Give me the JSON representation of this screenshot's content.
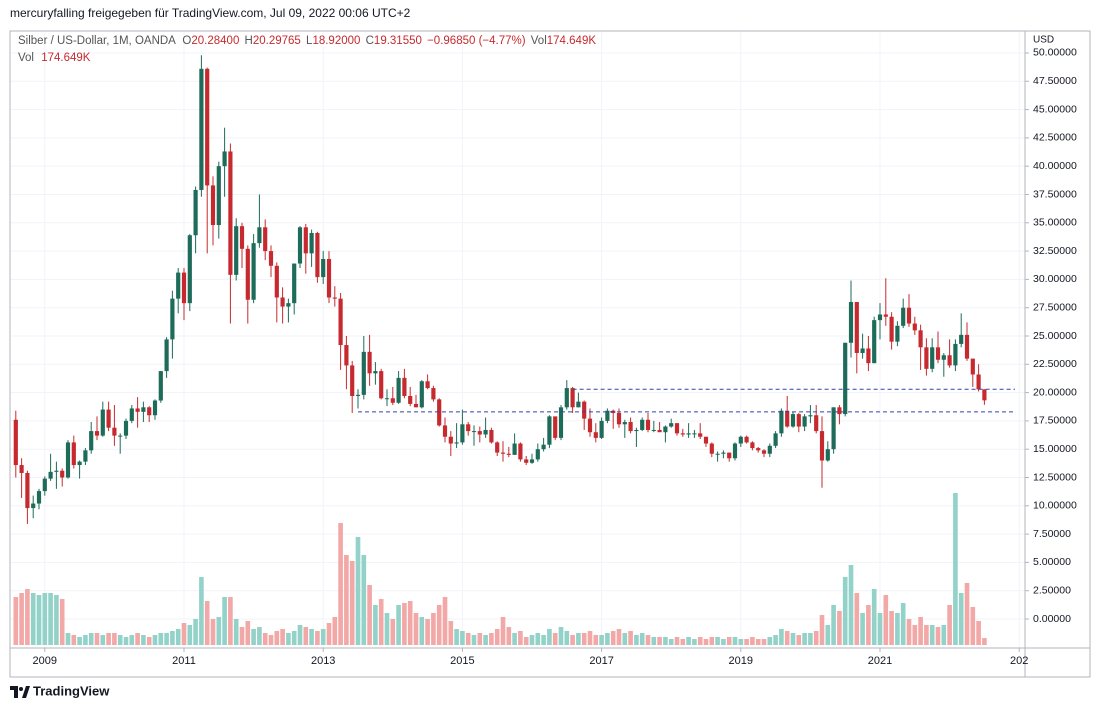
{
  "header": {
    "shared_by": "mercuryfalling freigegeben für TradingView.com, Jul 09, 2022 00:06 UTC+2"
  },
  "footer": {
    "brand": "TradingView"
  },
  "chart_data": {
    "type": "candlestick",
    "title": "Silber / US-Dollar, 1M, OANDA",
    "legend": {
      "o_label": "O",
      "o": "20.28400",
      "h_label": "H",
      "h": "20.29765",
      "l_label": "L",
      "l": "18.92000",
      "c_label": "C",
      "c": "19.31550",
      "change": "−0.96850 (−4.77%)",
      "vol_label": "Vol",
      "vol": "174.649K"
    },
    "currency": "USD",
    "up_color": "#1d6b59",
    "down_color": "#c62a2f",
    "volume_up_color": "#93d2c9",
    "volume_down_color": "#f3a8a8",
    "categories": [
      null,
      null,
      null,
      null,
      null,
      null,
      null,
      null,
      null,
      null,
      null,
      null,
      null,
      null,
      null,
      null,
      null,
      null,
      null,
      null,
      null,
      null,
      null,
      null,
      null,
      null,
      null,
      null,
      null,
      null,
      null,
      null,
      null,
      null,
      null,
      null,
      null,
      null,
      null,
      null,
      null,
      null,
      null,
      null,
      null,
      null,
      null,
      null,
      null,
      null,
      null,
      null,
      null,
      null,
      null,
      null,
      null,
      null,
      null,
      null,
      null,
      null,
      null,
      null,
      null,
      null,
      null,
      null,
      null,
      null,
      null,
      null,
      null,
      null,
      null,
      null,
      null,
      null,
      null,
      null,
      null,
      null,
      null,
      null,
      null,
      null,
      null,
      null,
      null,
      null,
      null,
      null,
      null,
      null,
      null,
      null,
      null,
      null,
      null,
      null,
      null,
      null,
      null,
      null,
      null,
      null,
      null,
      null,
      null,
      null,
      null,
      null,
      null,
      null,
      null,
      null,
      null,
      null,
      null,
      null,
      null,
      null,
      null,
      null,
      null,
      null,
      null,
      null,
      null,
      null,
      null,
      null,
      null,
      null,
      null,
      null,
      null,
      null,
      null,
      null,
      null,
      null,
      null,
      null,
      null,
      null,
      null,
      null,
      null,
      null,
      null,
      null,
      null,
      null,
      null,
      null,
      null,
      null,
      null,
      null,
      null,
      null,
      null,
      null,
      null,
      null,
      null,
      null
    ],
    "open": [
      17.6,
      13.6,
      12.9,
      9.8,
      10.2,
      11.3,
      12.4,
      13.0,
      13.1,
      12.5,
      15.6,
      13.6,
      13.9,
      14.9,
      16.6,
      16.2,
      18.5,
      16.9,
      16.2,
      16.2,
      17.5,
      18.6,
      18.3,
      18.7,
      18.0,
      19.3,
      21.9,
      24.7,
      28.3,
      30.6,
      27.9,
      33.9,
      37.9,
      48.6,
      38.3,
      34.8,
      40.0,
      41.3,
      30.4,
      34.7,
      32.7,
      28.2,
      33.2,
      34.6,
      32.5,
      31.2,
      28.4,
      27.6,
      27.9,
      31.4,
      34.6,
      32.3,
      34.1,
      30.2,
      31.8,
      28.4,
      28.3,
      24.2,
      22.4,
      19.7,
      19.8,
      23.6,
      21.7,
      21.9,
      19.5,
      19.5,
      19.1,
      21.3,
      19.7,
      19.0,
      18.7,
      21.0,
      20.4,
      19.4,
      17.1,
      16.1,
      15.5,
      15.6,
      17.2,
      16.6,
      16.6,
      16.3,
      16.7,
      15.6,
      14.7,
      14.6,
      14.5,
      15.5,
      14.1,
      13.8,
      14.1,
      15.0,
      15.4,
      17.9,
      16.0,
      18.7,
      20.4,
      18.7,
      19.2,
      17.7,
      16.5,
      16.0,
      17.5,
      18.4,
      18.2,
      17.2,
      17.4,
      16.6,
      16.7,
      17.6,
      16.7,
      16.7,
      16.5,
      17.0,
      17.3,
      16.4,
      16.3,
      16.4,
      16.4,
      16.1,
      15.5,
      14.6,
      14.6,
      14.7,
      14.2,
      15.5,
      16.1,
      15.6,
      15.1,
      14.9,
      14.6,
      15.3,
      16.4,
      18.4,
      17.0,
      18.1,
      17.0,
      17.9,
      18.0,
      16.6,
      14.0,
      15.0,
      18.7,
      18.1,
      24.4,
      28.0,
      23.5,
      23.9,
      22.6,
      26.4,
      26.9,
      26.7,
      24.5,
      25.9,
      27.5,
      26.1,
      25.5,
      24.0,
      22.1,
      24.0,
      22.9,
      23.3,
      22.4,
      24.3,
      25.1,
      23.0,
      21.6,
      20.284
    ],
    "high": [
      18.4,
      14.2,
      13.1,
      10.9,
      11.5,
      12.6,
      14.6,
      13.9,
      13.3,
      15.8,
      16.2,
      14.0,
      15.1,
      17.4,
      17.9,
      19.2,
      19.2,
      18.9,
      16.4,
      17.7,
      18.9,
      19.6,
      19.2,
      18.8,
      19.4,
      21.9,
      24.9,
      29.0,
      31.0,
      31.0,
      34.0,
      38.2,
      49.8,
      48.7,
      39.1,
      40.4,
      43.4,
      42.0,
      35.4,
      35.0,
      33.0,
      34.0,
      37.5,
      35.3,
      33.0,
      31.5,
      29.3,
      28.3,
      31.4,
      34.7,
      34.9,
      34.4,
      34.2,
      32.5,
      32.5,
      29.4,
      28.8,
      25.0,
      22.8,
      20.3,
      25.0,
      25.1,
      22.7,
      22.1,
      20.3,
      20.5,
      21.9,
      22.1,
      20.5,
      19.8,
      21.1,
      21.6,
      20.6,
      19.5,
      17.8,
      16.6,
      17.3,
      18.5,
      17.4,
      17.1,
      17.0,
      17.8,
      16.9,
      15.7,
      15.7,
      15.2,
      16.4,
      15.6,
      14.4,
      14.6,
      15.5,
      16.0,
      18.0,
      17.8,
      18.9,
      21.1,
      20.5,
      20.0,
      19.3,
      18.6,
      17.3,
      17.8,
      18.6,
      18.5,
      18.6,
      17.6,
      17.8,
      16.9,
      17.8,
      18.2,
      17.5,
      17.4,
      17.1,
      17.7,
      17.3,
      16.8,
      17.3,
      16.7,
      17.3,
      16.1,
      15.6,
      14.8,
      14.9,
      14.7,
      15.6,
      16.2,
      16.2,
      15.7,
      15.2,
      15.0,
      15.5,
      16.6,
      18.6,
      19.7,
      18.3,
      18.2,
      18.1,
      18.9,
      18.9,
      17.9,
      15.7,
      18.7,
      18.9,
      24.4,
      29.9,
      28.0,
      25.2,
      25.0,
      26.7,
      27.9,
      30.1,
      27.1,
      26.3,
      28.3,
      28.7,
      26.7,
      26.0,
      24.8,
      24.8,
      25.4,
      23.5,
      24.7,
      24.7,
      27.0,
      26.2,
      23.0,
      22.5,
      20.29765
    ],
    "low": [
      12.5,
      10.7,
      8.4,
      8.9,
      9.7,
      10.9,
      12.2,
      11.5,
      11.7,
      12.4,
      13.3,
      12.4,
      13.6,
      14.6,
      15.8,
      16.1,
      16.6,
      15.3,
      14.6,
      15.9,
      17.3,
      16.9,
      17.4,
      17.4,
      17.6,
      19.1,
      21.3,
      23.0,
      27.0,
      26.4,
      27.2,
      32.3,
      37.3,
      32.3,
      33.0,
      33.6,
      37.3,
      26.1,
      29.9,
      31.0,
      26.1,
      27.9,
      32.8,
      31.7,
      30.2,
      26.2,
      26.1,
      26.2,
      26.9,
      31.0,
      30.5,
      31.1,
      29.7,
      29.6,
      27.9,
      27.6,
      22.0,
      20.3,
      18.2,
      18.6,
      19.4,
      20.6,
      20.7,
      19.4,
      18.8,
      18.9,
      19.0,
      19.5,
      18.8,
      18.7,
      18.6,
      20.3,
      19.2,
      17.0,
      15.6,
      14.4,
      15.1,
      15.4,
      16.2,
      15.3,
      15.6,
      16.0,
      15.5,
      14.4,
      13.9,
      14.3,
      14.5,
      13.9,
      13.6,
      13.7,
      13.9,
      14.8,
      15.1,
      15.8,
      15.8,
      18.5,
      18.2,
      18.7,
      16.7,
      16.1,
      15.6,
      15.9,
      17.3,
      16.8,
      16.9,
      16.0,
      16.4,
      15.2,
      16.6,
      16.5,
      16.5,
      16.6,
      15.6,
      16.9,
      16.2,
      16.1,
      16.0,
      16.0,
      15.9,
      15.2,
      14.3,
      13.9,
      14.2,
      13.9,
      14.0,
      15.2,
      15.5,
      14.9,
      14.7,
      14.3,
      14.3,
      15.1,
      16.1,
      16.9,
      16.9,
      16.5,
      16.6,
      17.3,
      16.4,
      11.6,
      13.9,
      14.6,
      17.2,
      17.9,
      23.1,
      21.7,
      23.0,
      21.9,
      22.6,
      24.7,
      25.9,
      23.8,
      24.1,
      25.7,
      25.8,
      25.1,
      22.0,
      21.5,
      21.8,
      22.6,
      21.4,
      22.2,
      21.9,
      24.0,
      22.8,
      20.5,
      20.1,
      18.92
    ],
    "close": [
      13.6,
      12.9,
      9.8,
      10.2,
      11.3,
      12.4,
      13.0,
      13.1,
      12.5,
      15.6,
      13.6,
      13.9,
      14.9,
      16.6,
      16.2,
      18.5,
      16.9,
      16.2,
      16.2,
      17.5,
      18.6,
      18.3,
      18.7,
      18.0,
      19.3,
      21.9,
      24.7,
      28.3,
      30.6,
      27.9,
      33.9,
      37.9,
      48.6,
      38.3,
      34.8,
      40.0,
      41.3,
      30.4,
      34.7,
      32.7,
      28.2,
      33.2,
      34.6,
      32.5,
      31.2,
      28.4,
      27.6,
      27.9,
      31.4,
      34.6,
      32.3,
      34.1,
      30.2,
      31.8,
      28.4,
      28.3,
      24.2,
      22.4,
      19.7,
      19.8,
      23.6,
      21.7,
      21.9,
      19.5,
      19.5,
      19.1,
      21.3,
      19.7,
      19.0,
      18.7,
      21.0,
      20.4,
      19.4,
      17.1,
      16.1,
      15.5,
      15.6,
      17.2,
      16.6,
      16.6,
      16.3,
      16.7,
      15.6,
      14.7,
      14.6,
      14.5,
      15.5,
      14.1,
      13.8,
      14.1,
      15.0,
      15.4,
      17.9,
      16.0,
      18.7,
      20.4,
      18.7,
      19.2,
      17.7,
      16.5,
      16.0,
      17.5,
      18.4,
      18.2,
      17.2,
      17.4,
      16.6,
      16.7,
      17.6,
      16.7,
      16.7,
      16.5,
      17.0,
      17.3,
      16.4,
      16.3,
      16.4,
      16.4,
      16.1,
      15.5,
      14.6,
      14.6,
      14.7,
      14.2,
      15.5,
      16.1,
      15.6,
      15.1,
      14.9,
      14.6,
      15.3,
      16.4,
      18.4,
      17.0,
      18.1,
      17.0,
      17.9,
      18.0,
      16.6,
      14.0,
      15.0,
      18.7,
      18.1,
      24.4,
      28.0,
      23.5,
      23.9,
      22.6,
      26.4,
      26.9,
      26.7,
      24.5,
      25.9,
      27.5,
      26.1,
      25.5,
      24.0,
      22.1,
      24.0,
      22.9,
      23.3,
      22.4,
      24.3,
      25.1,
      23.0,
      21.6,
      20.284,
      19.3155
    ],
    "volume": [
      1200,
      1300,
      1400,
      1300,
      1250,
      1300,
      1300,
      1250,
      1150,
      300,
      250,
      200,
      250,
      300,
      300,
      250,
      300,
      300,
      250,
      200,
      250,
      300,
      250,
      200,
      250,
      300,
      300,
      350,
      400,
      550,
      500,
      650,
      1700,
      1100,
      650,
      700,
      1200,
      1200,
      650,
      450,
      600,
      400,
      450,
      300,
      250,
      350,
      400,
      300,
      350,
      500,
      450,
      400,
      350,
      400,
      550,
      700,
      3050,
      2250,
      2100,
      2700,
      2250,
      1500,
      1000,
      1150,
      800,
      650,
      1000,
      1050,
      1100,
      800,
      700,
      650,
      800,
      1000,
      1200,
      600,
      400,
      350,
      300,
      250,
      300,
      250,
      300,
      400,
      700,
      450,
      300,
      350,
      200,
      250,
      300,
      250,
      400,
      300,
      450,
      350,
      250,
      300,
      300,
      350,
      250,
      250,
      300,
      350,
      400,
      300,
      350,
      250,
      300,
      250,
      200,
      200,
      200,
      150,
      200,
      150,
      200,
      150,
      200,
      150,
      200,
      200,
      150,
      200,
      200,
      150,
      150,
      200,
      150,
      150,
      200,
      250,
      400,
      350,
      300,
      250,
      300,
      300,
      350,
      750,
      500,
      1000,
      850,
      1700,
      2000,
      1300,
      800,
      1000,
      1400,
      800,
      1250,
      850,
      800,
      1050,
      650,
      500,
      700,
      500,
      500,
      450,
      500,
      1000,
      3800,
      1300,
      1550,
      950,
      600,
      174.649
    ],
    "vlim": [
      0,
      4000
    ],
    "xlim": [
      -1,
      174
    ],
    "xticks": [
      {
        "value": 5,
        "label": "2009"
      },
      {
        "value": 29,
        "label": "2011"
      },
      {
        "value": 53,
        "label": "2013"
      },
      {
        "value": 77,
        "label": "2015"
      },
      {
        "value": 101,
        "label": "2017"
      },
      {
        "value": 125,
        "label": "2019"
      },
      {
        "value": 149,
        "label": "2021"
      },
      {
        "value": 173,
        "label": "202"
      }
    ],
    "ylim": [
      -2.56,
      51.94
    ],
    "yticks": [
      {
        "value": 0,
        "label": "0.00000"
      },
      {
        "value": 2.5,
        "label": "2.50000"
      },
      {
        "value": 5,
        "label": "5.00000"
      },
      {
        "value": 7.5,
        "label": "7.50000"
      },
      {
        "value": 10,
        "label": "10.00000"
      },
      {
        "value": 12.5,
        "label": "12.50000"
      },
      {
        "value": 15,
        "label": "15.00000"
      },
      {
        "value": 17.5,
        "label": "17.50000"
      },
      {
        "value": 20,
        "label": "20.00000"
      },
      {
        "value": 22.5,
        "label": "22.50000"
      },
      {
        "value": 25,
        "label": "25.00000"
      },
      {
        "value": 27.5,
        "label": "27.50000"
      },
      {
        "value": 30,
        "label": "30.00000"
      },
      {
        "value": 32.5,
        "label": "32.50000"
      },
      {
        "value": 35,
        "label": "35.00000"
      },
      {
        "value": 37.5,
        "label": "37.50000"
      },
      {
        "value": 40,
        "label": "40.00000"
      },
      {
        "value": 42.5,
        "label": "42.50000"
      },
      {
        "value": 45,
        "label": "45.00000"
      },
      {
        "value": 47.5,
        "label": "47.50000"
      },
      {
        "value": 50,
        "label": "50.00000"
      }
    ],
    "grid": true,
    "hlines": [
      {
        "value": 20.3,
        "start": 96,
        "color": "#3344aa"
      },
      {
        "value": 18.3,
        "start": 59,
        "color": "#3344aa"
      }
    ]
  }
}
